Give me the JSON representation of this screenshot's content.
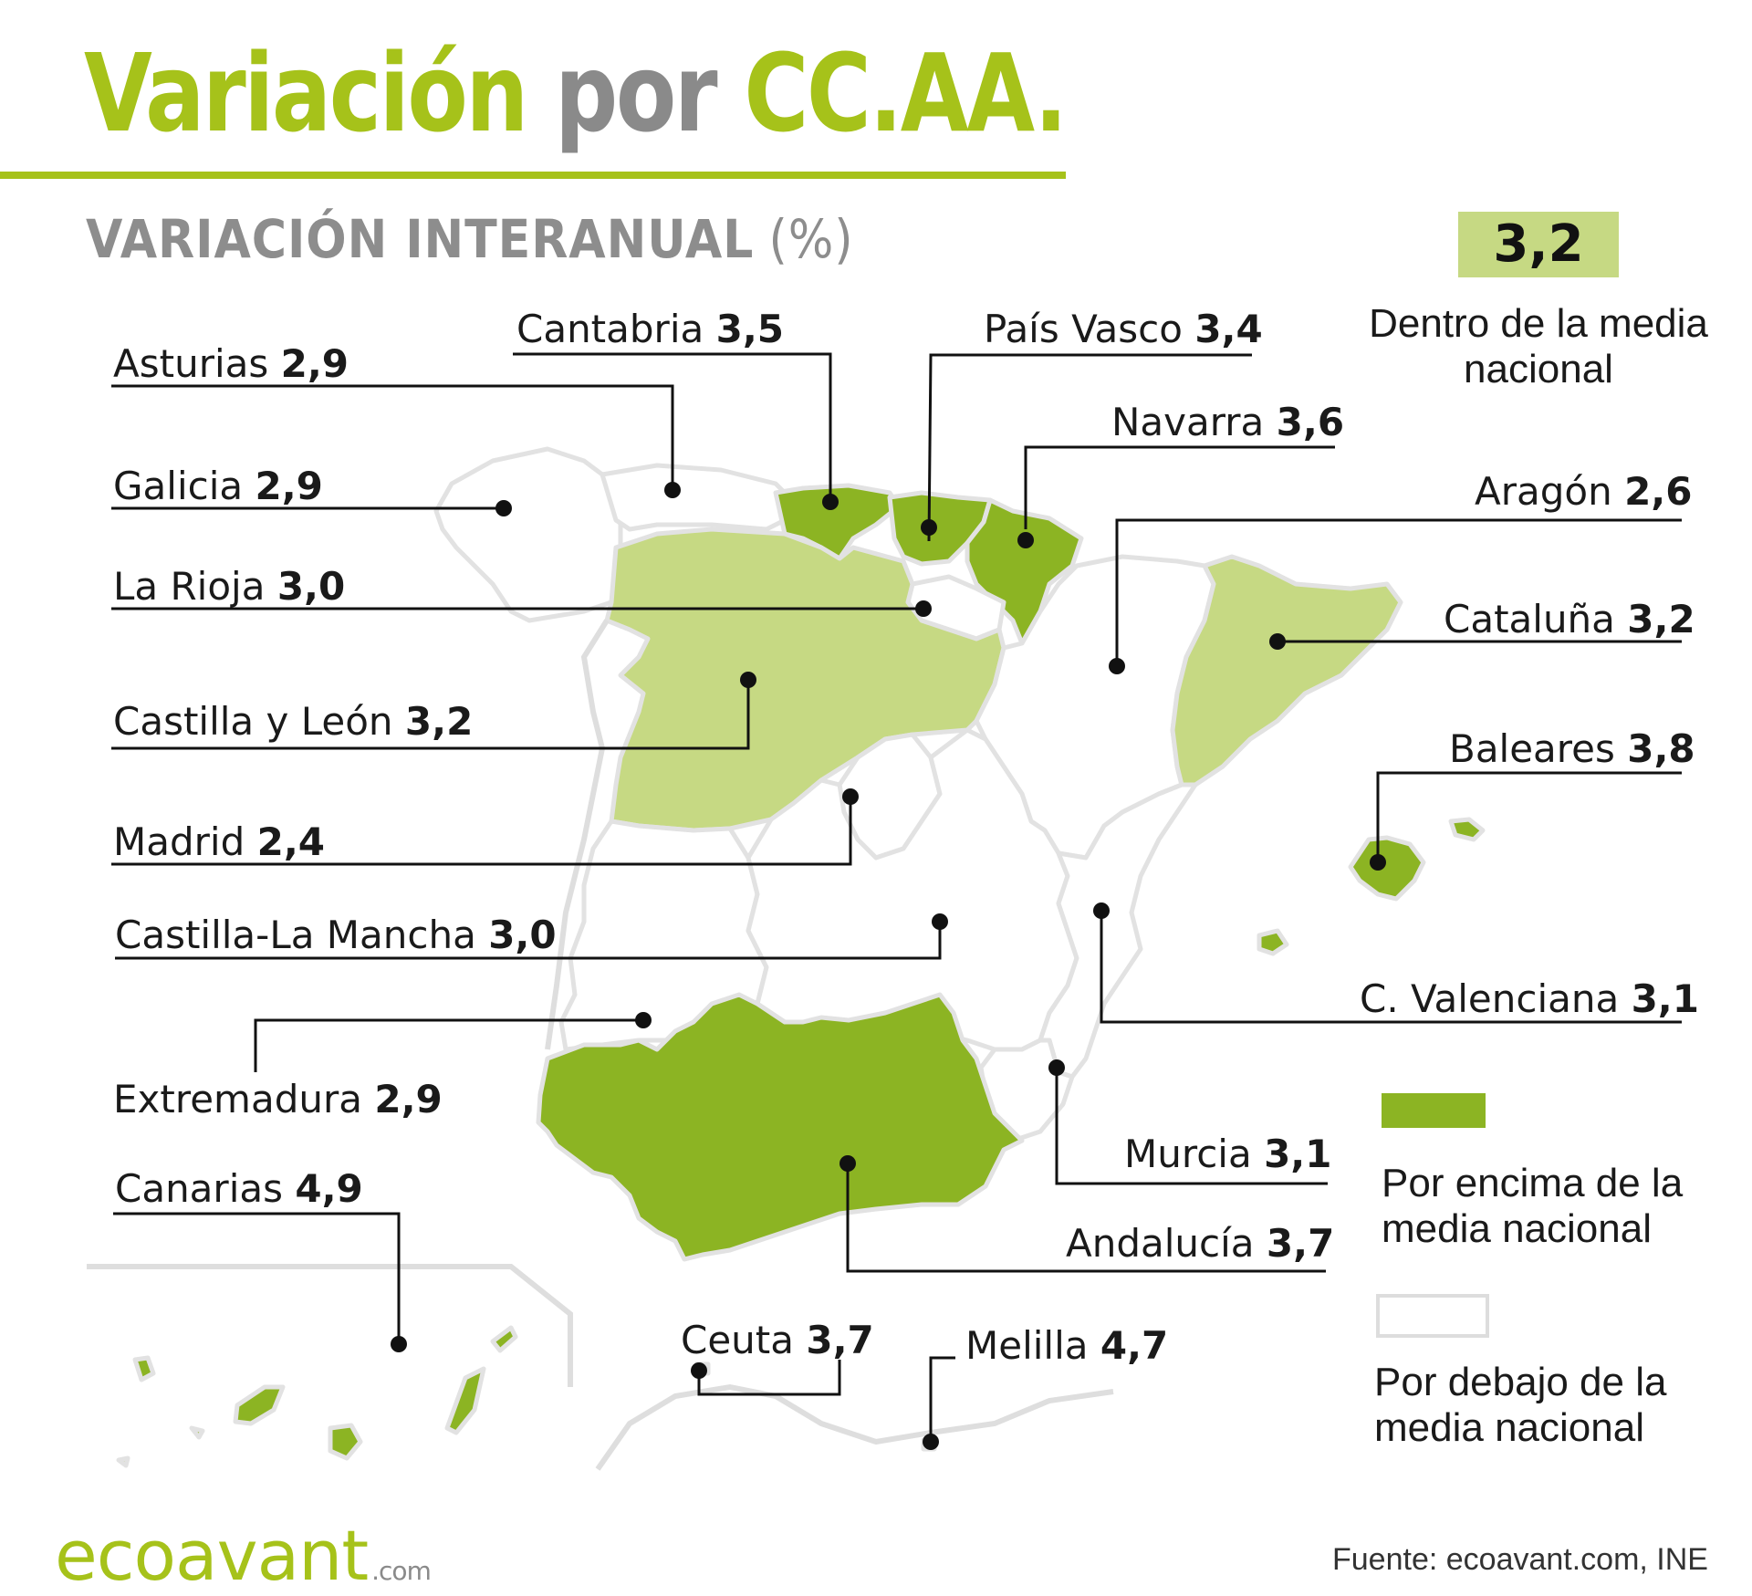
{
  "title": {
    "part1": "Variación",
    "part2": "por",
    "part3": "CC.AA."
  },
  "subtitle": {
    "text": "VARIACIÓN INTERANUAL",
    "unit": "(%)"
  },
  "national_average": {
    "value": "3,2",
    "label": "Dentro de la media nacional"
  },
  "regions": [
    {
      "name": "Asturias",
      "value": "2,9",
      "category": "below"
    },
    {
      "name": "Cantabria",
      "value": "3,5",
      "category": "above"
    },
    {
      "name": "País Vasco",
      "value": "3,4",
      "category": "above"
    },
    {
      "name": "Navarra",
      "value": "3,6",
      "category": "above"
    },
    {
      "name": "Galicia",
      "value": "2,9",
      "category": "below"
    },
    {
      "name": "Aragón",
      "value": "2,6",
      "category": "below"
    },
    {
      "name": "La Rioja",
      "value": "3,0",
      "category": "below"
    },
    {
      "name": "Cataluña",
      "value": "3,2",
      "category": "average"
    },
    {
      "name": "Castilla y León",
      "value": "3,2",
      "category": "average"
    },
    {
      "name": "Baleares",
      "value": "3,8",
      "category": "above"
    },
    {
      "name": "Madrid",
      "value": "2,4",
      "category": "below"
    },
    {
      "name": "Castilla-La Mancha",
      "value": "3,0",
      "category": "below"
    },
    {
      "name": "C. Valenciana",
      "value": "3,1",
      "category": "below"
    },
    {
      "name": "Extremadura",
      "value": "2,9",
      "category": "below"
    },
    {
      "name": "Murcia",
      "value": "3,1",
      "category": "below"
    },
    {
      "name": "Canarias",
      "value": "4,9",
      "category": "above"
    },
    {
      "name": "Andalucía",
      "value": "3,7",
      "category": "above"
    },
    {
      "name": "Ceuta",
      "value": "3,7",
      "category": "above"
    },
    {
      "name": "Melilla",
      "value": "4,7",
      "category": "above"
    }
  ],
  "legend": {
    "above": "Por encima de la media nacional",
    "below": "Por debajo de la media nacional"
  },
  "colors": {
    "accent": "#a6c21a",
    "above": "#8cb423",
    "average": "#c6d983",
    "below": "#ffffff",
    "border": "#e0e0e0"
  },
  "logo": {
    "main": "ecoavant",
    "suffix": ".com"
  },
  "source": "Fuente: ecoavant.com, INE"
}
